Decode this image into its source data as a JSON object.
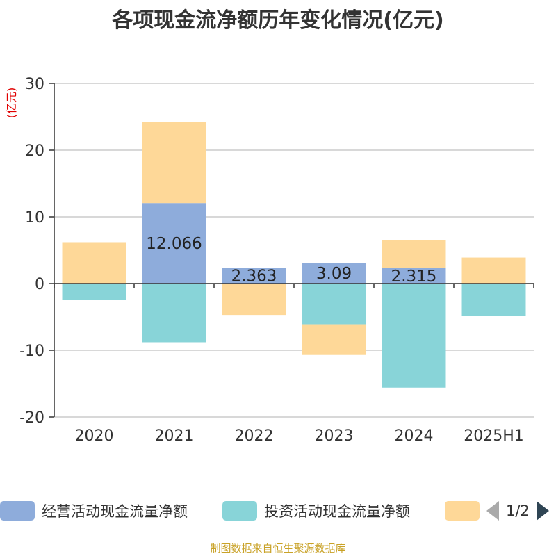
{
  "chart_data": {
    "type": "bar",
    "stacked": true,
    "title": "各项现金流净额历年变化情况(亿元)",
    "unit_label": "(亿元)",
    "categories": [
      "2020",
      "2021",
      "2022",
      "2023",
      "2024",
      "2025H1"
    ],
    "ylim": [
      -20,
      30
    ],
    "yticks": [
      30,
      20,
      10,
      0,
      -10,
      -20
    ],
    "grid": true,
    "legend_position": "bottom",
    "series": [
      {
        "name": "经营活动现金流量净额",
        "color": "#8eacdb",
        "values": [
          0.0,
          12.066,
          2.363,
          3.09,
          2.315,
          0.0
        ],
        "labels": [
          "",
          "12.066",
          "2.363",
          "3.09",
          "2.315",
          ""
        ]
      },
      {
        "name": "投资活动现金流量净额",
        "color": "#88d4d8",
        "values": [
          -2.5,
          -8.8,
          0.0,
          -6.1,
          -15.6,
          -4.8
        ],
        "labels": [
          "",
          "",
          "",
          "",
          "",
          ""
        ]
      },
      {
        "name": "",
        "color": "#fed898",
        "values": [
          6.2,
          12.1,
          -4.7,
          -4.6,
          4.2,
          3.9
        ],
        "labels": [
          "",
          "",
          "",
          "",
          "",
          ""
        ]
      }
    ]
  },
  "legend": {
    "page_text": "1/2"
  },
  "source_text": "制图数据来自恒生聚源数据库"
}
